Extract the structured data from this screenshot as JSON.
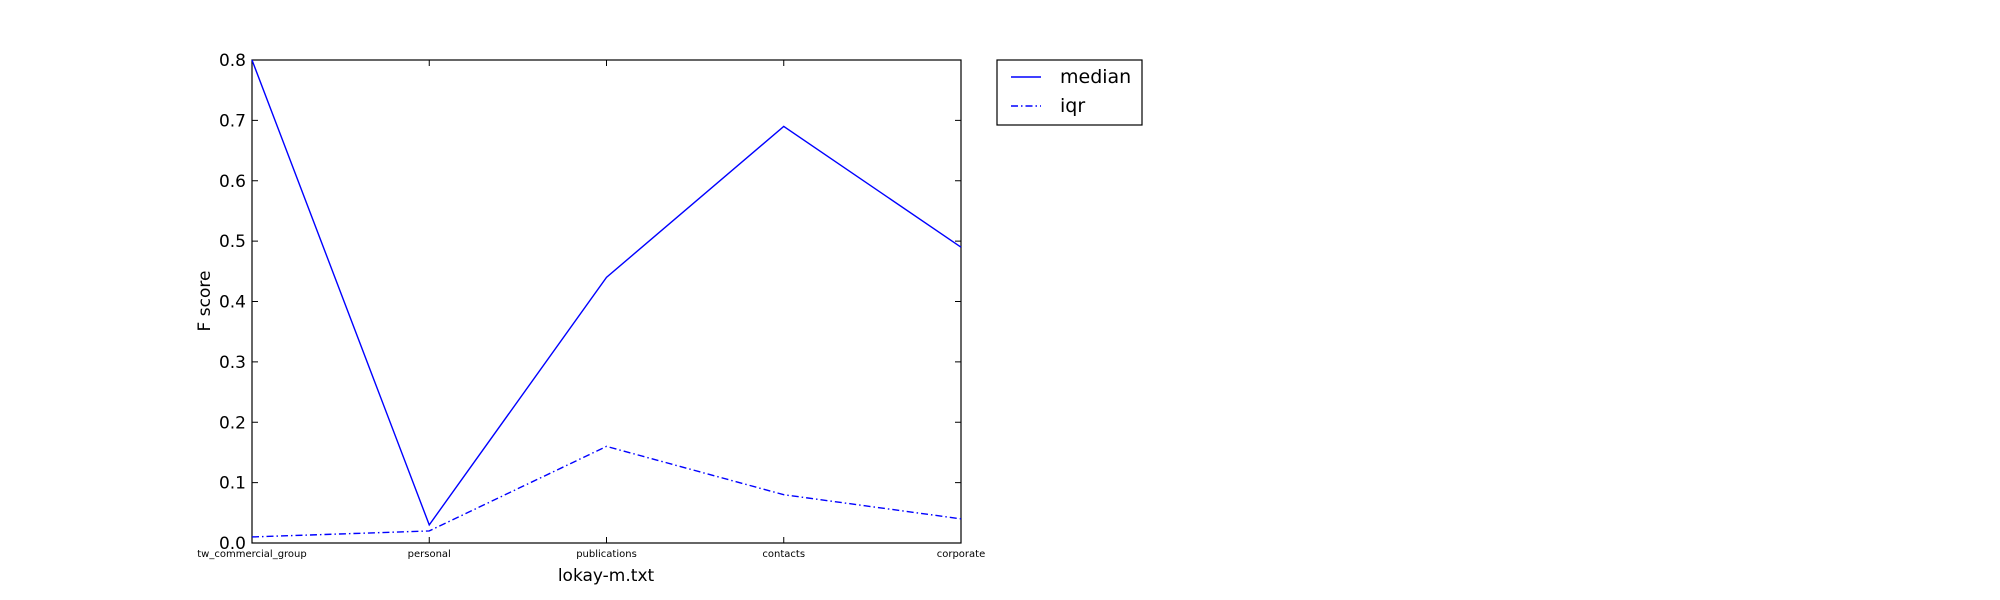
{
  "chart_data": {
    "type": "line",
    "title": "",
    "xlabel": "lokay-m.txt",
    "ylabel": "F score",
    "categories": [
      "tw_commercial_group",
      "personal",
      "publications",
      "contacts",
      "corporate"
    ],
    "ylim": [
      0.0,
      0.8
    ],
    "yticks": [
      0.0,
      0.1,
      0.2,
      0.3,
      0.4,
      0.5,
      0.6,
      0.7,
      0.8
    ],
    "ytick_labels": [
      "0.0",
      "0.1",
      "0.2",
      "0.3",
      "0.4",
      "0.5",
      "0.6",
      "0.7",
      "0.8"
    ],
    "series": [
      {
        "name": "median",
        "values": [
          0.8,
          0.03,
          0.44,
          0.69,
          0.49
        ],
        "color": "#0000ff",
        "style": "solid"
      },
      {
        "name": "iqr",
        "values": [
          0.01,
          0.02,
          0.16,
          0.08,
          0.04
        ],
        "color": "#0000ff",
        "style": "dashdot"
      }
    ],
    "grid": false,
    "legend_position": "outside-top-right"
  }
}
